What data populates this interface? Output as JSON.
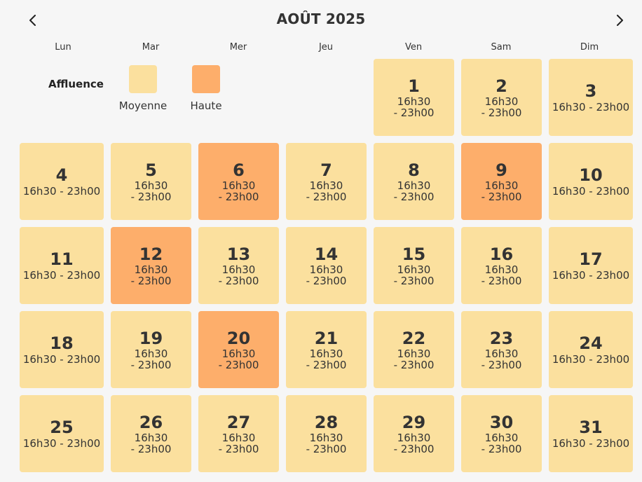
{
  "header": {
    "title": "AOÛT 2025",
    "prev_label": "previous-month",
    "next_label": "next-month"
  },
  "weekdays": [
    "Lun",
    "Mar",
    "Mer",
    "Jeu",
    "Ven",
    "Sam",
    "Dim"
  ],
  "legend": {
    "title": "Affluence",
    "items": [
      {
        "label": "Moyenne",
        "color": "#fbe09e"
      },
      {
        "label": "Haute",
        "color": "#fdae6b"
      }
    ]
  },
  "colors": {
    "medium": "#fbe09e",
    "high": "#fdae6b",
    "background": "#f6f6f6"
  },
  "month": {
    "first_weekday_index": 4,
    "days": [
      {
        "day": "1",
        "hours": "16h30\n- 23h00",
        "level": "medium"
      },
      {
        "day": "2",
        "hours": "16h30\n- 23h00",
        "level": "medium"
      },
      {
        "day": "3",
        "hours": "16h30 - 23h00",
        "level": "medium"
      },
      {
        "day": "4",
        "hours": "16h30 - 23h00",
        "level": "medium"
      },
      {
        "day": "5",
        "hours": "16h30\n- 23h00",
        "level": "medium"
      },
      {
        "day": "6",
        "hours": "16h30\n- 23h00",
        "level": "high"
      },
      {
        "day": "7",
        "hours": "16h30\n- 23h00",
        "level": "medium"
      },
      {
        "day": "8",
        "hours": "16h30\n- 23h00",
        "level": "medium"
      },
      {
        "day": "9",
        "hours": "16h30\n- 23h00",
        "level": "high"
      },
      {
        "day": "10",
        "hours": "16h30 - 23h00",
        "level": "medium"
      },
      {
        "day": "11",
        "hours": "16h30 - 23h00",
        "level": "medium"
      },
      {
        "day": "12",
        "hours": "16h30\n- 23h00",
        "level": "high"
      },
      {
        "day": "13",
        "hours": "16h30\n- 23h00",
        "level": "medium"
      },
      {
        "day": "14",
        "hours": "16h30\n- 23h00",
        "level": "medium"
      },
      {
        "day": "15",
        "hours": "16h30\n- 23h00",
        "level": "medium"
      },
      {
        "day": "16",
        "hours": "16h30\n- 23h00",
        "level": "medium"
      },
      {
        "day": "17",
        "hours": "16h30 - 23h00",
        "level": "medium"
      },
      {
        "day": "18",
        "hours": "16h30 - 23h00",
        "level": "medium"
      },
      {
        "day": "19",
        "hours": "16h30\n- 23h00",
        "level": "medium"
      },
      {
        "day": "20",
        "hours": "16h30\n- 23h00",
        "level": "high"
      },
      {
        "day": "21",
        "hours": "16h30\n- 23h00",
        "level": "medium"
      },
      {
        "day": "22",
        "hours": "16h30\n- 23h00",
        "level": "medium"
      },
      {
        "day": "23",
        "hours": "16h30\n- 23h00",
        "level": "medium"
      },
      {
        "day": "24",
        "hours": "16h30 - 23h00",
        "level": "medium"
      },
      {
        "day": "25",
        "hours": "16h30 - 23h00",
        "level": "medium"
      },
      {
        "day": "26",
        "hours": "16h30\n- 23h00",
        "level": "medium"
      },
      {
        "day": "27",
        "hours": "16h30\n- 23h00",
        "level": "medium"
      },
      {
        "day": "28",
        "hours": "16h30\n- 23h00",
        "level": "medium"
      },
      {
        "day": "29",
        "hours": "16h30\n- 23h00",
        "level": "medium"
      },
      {
        "day": "30",
        "hours": "16h30\n- 23h00",
        "level": "medium"
      },
      {
        "day": "31",
        "hours": "16h30 - 23h00",
        "level": "medium"
      }
    ]
  }
}
